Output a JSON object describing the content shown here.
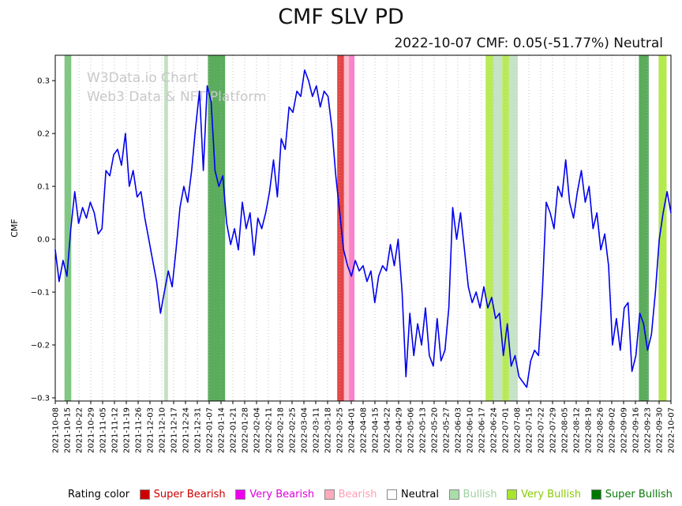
{
  "title": "CMF SLV PD",
  "subtitle": "2022-10-07 CMF: 0.05(-51.77%) Neutral",
  "watermark": {
    "line1": "W3Data.io Chart",
    "line2": "Web3 Data & NFT Platform",
    "color": "#c8c8c8"
  },
  "legend": {
    "label": "Rating color",
    "items": [
      {
        "label": "Super Bearish",
        "color": "#cc0000",
        "text_color": "#cc0000"
      },
      {
        "label": "Very Bearish",
        "color": "#ee00ee",
        "text_color": "#dd00dd"
      },
      {
        "label": "Bearish",
        "color": "#ffaabb",
        "text_color": "#ff9db3"
      },
      {
        "label": "Neutral",
        "color": "#ffffff",
        "text_color": "#000000"
      },
      {
        "label": "Bullish",
        "color": "#aaddaa",
        "text_color": "#9fcf9f"
      },
      {
        "label": "Very Bullish",
        "color": "#a8e62e",
        "text_color": "#88cc00"
      },
      {
        "label": "Super Bullish",
        "color": "#007700",
        "text_color": "#0a7a0a"
      }
    ]
  },
  "chart_data": {
    "type": "line",
    "title": "CMF SLV PD",
    "ylabel": "CMF",
    "ylim": [
      -0.306,
      0.348
    ],
    "yticks": [
      0.3,
      0.2,
      0.1,
      0.0,
      -0.1,
      -0.2,
      -0.3
    ],
    "grid": "dotted-vertical",
    "legend_position": "bottom",
    "x_tick_labels": [
      "2021-10-08",
      "2021-10-15",
      "2021-10-22",
      "2021-10-29",
      "2021-11-05",
      "2021-11-12",
      "2021-11-19",
      "2021-11-26",
      "2021-12-03",
      "2021-12-10",
      "2021-12-17",
      "2021-12-24",
      "2021-12-31",
      "2022-01-07",
      "2022-01-14",
      "2022-01-21",
      "2022-01-28",
      "2022-02-04",
      "2022-02-11",
      "2022-02-18",
      "2022-02-25",
      "2022-03-04",
      "2022-03-11",
      "2022-03-18",
      "2022-03-25",
      "2022-04-01",
      "2022-04-08",
      "2022-04-15",
      "2022-04-22",
      "2022-04-29",
      "2022-05-06",
      "2022-05-13",
      "2022-05-20",
      "2022-05-27",
      "2022-06-03",
      "2022-06-10",
      "2022-06-17",
      "2022-06-24",
      "2022-07-01",
      "2022-07-08",
      "2022-07-15",
      "2022-07-22",
      "2022-07-29",
      "2022-08-05",
      "2022-08-12",
      "2022-08-19",
      "2022-08-26",
      "2022-09-02",
      "2022-09-09",
      "2022-09-16",
      "2022-09-23",
      "2022-09-30",
      "2022-10-07"
    ],
    "series": [
      {
        "name": "CMF",
        "color": "#0000ee",
        "values": [
          -0.02,
          -0.08,
          -0.04,
          -0.07,
          0.02,
          0.09,
          0.03,
          0.06,
          0.04,
          0.07,
          0.05,
          0.01,
          0.02,
          0.13,
          0.12,
          0.16,
          0.17,
          0.14,
          0.2,
          0.1,
          0.13,
          0.08,
          0.09,
          0.04,
          0.0,
          -0.04,
          -0.08,
          -0.14,
          -0.1,
          -0.06,
          -0.09,
          -0.02,
          0.06,
          0.1,
          0.07,
          0.13,
          0.21,
          0.28,
          0.13,
          0.29,
          0.26,
          0.13,
          0.1,
          0.12,
          0.03,
          -0.01,
          0.02,
          -0.02,
          0.07,
          0.02,
          0.05,
          -0.03,
          0.04,
          0.02,
          0.05,
          0.09,
          0.15,
          0.08,
          0.19,
          0.17,
          0.25,
          0.24,
          0.28,
          0.27,
          0.32,
          0.3,
          0.27,
          0.29,
          0.25,
          0.28,
          0.27,
          0.21,
          0.12,
          0.05,
          -0.02,
          -0.05,
          -0.07,
          -0.04,
          -0.06,
          -0.05,
          -0.08,
          -0.06,
          -0.12,
          -0.07,
          -0.05,
          -0.06,
          -0.01,
          -0.05,
          0.0,
          -0.1,
          -0.26,
          -0.14,
          -0.22,
          -0.16,
          -0.2,
          -0.13,
          -0.22,
          -0.24,
          -0.15,
          -0.23,
          -0.21,
          -0.13,
          0.06,
          0.0,
          0.05,
          -0.02,
          -0.09,
          -0.12,
          -0.1,
          -0.13,
          -0.09,
          -0.13,
          -0.11,
          -0.15,
          -0.14,
          -0.22,
          -0.16,
          -0.24,
          -0.22,
          -0.26,
          -0.27,
          -0.28,
          -0.23,
          -0.21,
          -0.22,
          -0.1,
          0.07,
          0.05,
          0.02,
          0.1,
          0.08,
          0.15,
          0.07,
          0.04,
          0.09,
          0.13,
          0.07,
          0.1,
          0.02,
          0.05,
          -0.02,
          0.01,
          -0.05,
          -0.2,
          -0.15,
          -0.21,
          -0.13,
          -0.12,
          -0.25,
          -0.22,
          -0.14,
          -0.16,
          -0.21,
          -0.18,
          -0.1,
          0.0,
          0.05,
          0.09,
          0.05
        ]
      }
    ],
    "bands": [
      {
        "x0": 0.015,
        "x1": 0.026,
        "color": "#4caf50",
        "opacity": 0.7,
        "rating": "Bullish"
      },
      {
        "x0": 0.177,
        "x1": 0.183,
        "color": "#90c990",
        "opacity": 0.55,
        "rating": "Bullish"
      },
      {
        "x0": 0.248,
        "x1": 0.276,
        "color": "#3e9e41",
        "opacity": 0.85,
        "rating": "Bullish"
      },
      {
        "x0": 0.458,
        "x1": 0.469,
        "color": "#e03131",
        "opacity": 0.9,
        "rating": "Super Bearish"
      },
      {
        "x0": 0.469,
        "x1": 0.477,
        "color": "#ffb3c8",
        "opacity": 0.9,
        "rating": "Bearish"
      },
      {
        "x0": 0.477,
        "x1": 0.486,
        "color": "#f973c8",
        "opacity": 0.9,
        "rating": "Very Bearish"
      },
      {
        "x0": 0.699,
        "x1": 0.711,
        "color": "#a8e62e",
        "opacity": 0.8,
        "rating": "Very Bullish"
      },
      {
        "x0": 0.711,
        "x1": 0.726,
        "color": "#b9dcb9",
        "opacity": 0.8,
        "rating": "Bullish"
      },
      {
        "x0": 0.726,
        "x1": 0.737,
        "color": "#a8e62e",
        "opacity": 0.8,
        "rating": "Very Bullish"
      },
      {
        "x0": 0.737,
        "x1": 0.751,
        "color": "#b9dcb9",
        "opacity": 0.8,
        "rating": "Bullish"
      },
      {
        "x0": 0.948,
        "x1": 0.964,
        "color": "#3e9e41",
        "opacity": 0.85,
        "rating": "Bullish"
      },
      {
        "x0": 0.98,
        "x1": 0.993,
        "color": "#a8e62e",
        "opacity": 0.85,
        "rating": "Very Bullish"
      }
    ]
  }
}
